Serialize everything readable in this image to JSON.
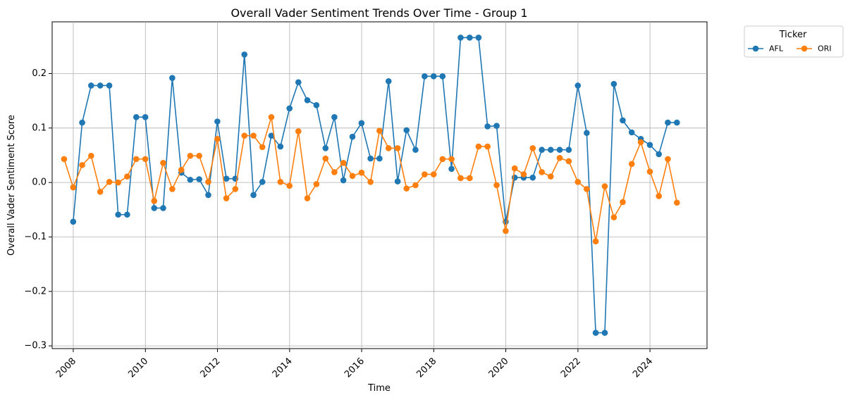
{
  "chart_data": {
    "type": "line",
    "title": "Overall Vader Sentiment Trends Over Time - Group 1",
    "xlabel": "Time",
    "ylabel": "Overall Vader Sentiment Score",
    "xlim": [
      "2007-06-01",
      "2025-08-01"
    ],
    "ylim": [
      -0.305,
      0.295
    ],
    "x_ticks": [
      "2008",
      "2010",
      "2012",
      "2014",
      "2016",
      "2018",
      "2020",
      "2022",
      "2024"
    ],
    "y_ticks": [
      "−0.3",
      "−0.2",
      "−0.1",
      "0.0",
      "0.1",
      "0.2"
    ],
    "grid": true,
    "legend": {
      "title": "Ticker",
      "placement": "outside-top-right",
      "columns": 2
    },
    "series": [
      {
        "name": "AFL",
        "color": "#1f77b4",
        "marker": "circle",
        "points": [
          [
            "2007-12-31",
            -0.072
          ],
          [
            "2008-03-31",
            0.11
          ],
          [
            "2008-06-30",
            0.178
          ],
          [
            "2008-09-30",
            0.178
          ],
          [
            "2008-12-31",
            0.178
          ],
          [
            "2009-03-31",
            -0.059
          ],
          [
            "2009-06-30",
            -0.059
          ],
          [
            "2009-09-30",
            0.12
          ],
          [
            "2009-12-31",
            0.12
          ],
          [
            "2010-03-31",
            -0.047
          ],
          [
            "2010-06-30",
            -0.047
          ],
          [
            "2010-09-30",
            0.192
          ],
          [
            "2010-12-31",
            0.018
          ],
          [
            "2011-03-31",
            0.005
          ],
          [
            "2011-06-30",
            0.006
          ],
          [
            "2011-09-30",
            -0.023
          ],
          [
            "2011-12-31",
            0.112
          ],
          [
            "2012-03-31",
            0.007
          ],
          [
            "2012-06-30",
            0.007
          ],
          [
            "2012-09-30",
            0.235
          ],
          [
            "2012-12-31",
            -0.023
          ],
          [
            "2013-03-31",
            0.001
          ],
          [
            "2013-06-30",
            0.086
          ],
          [
            "2013-09-30",
            0.066
          ],
          [
            "2013-12-31",
            0.136
          ],
          [
            "2014-03-31",
            0.184
          ],
          [
            "2014-06-30",
            0.151
          ],
          [
            "2014-09-30",
            0.142
          ],
          [
            "2014-12-31",
            0.063
          ],
          [
            "2015-03-31",
            0.12
          ],
          [
            "2015-06-30",
            0.004
          ],
          [
            "2015-09-30",
            0.084
          ],
          [
            "2015-12-31",
            0.109
          ],
          [
            "2016-03-31",
            0.044
          ],
          [
            "2016-06-30",
            0.044
          ],
          [
            "2016-09-30",
            0.186
          ],
          [
            "2016-12-31",
            0.002
          ],
          [
            "2017-03-31",
            0.096
          ],
          [
            "2017-06-30",
            0.06
          ],
          [
            "2017-09-30",
            0.195
          ],
          [
            "2017-12-31",
            0.195
          ],
          [
            "2018-03-31",
            0.195
          ],
          [
            "2018-06-30",
            0.025
          ],
          [
            "2018-09-30",
            0.266
          ],
          [
            "2018-12-31",
            0.266
          ],
          [
            "2019-03-31",
            0.266
          ],
          [
            "2019-06-30",
            0.103
          ],
          [
            "2019-09-30",
            0.104
          ],
          [
            "2019-12-31",
            -0.072
          ],
          [
            "2020-03-31",
            0.009
          ],
          [
            "2020-06-30",
            0.009
          ],
          [
            "2020-09-30",
            0.009
          ],
          [
            "2020-12-31",
            0.06
          ],
          [
            "2021-03-31",
            0.06
          ],
          [
            "2021-06-30",
            0.06
          ],
          [
            "2021-09-30",
            0.06
          ],
          [
            "2021-12-31",
            0.178
          ],
          [
            "2022-03-31",
            0.091
          ],
          [
            "2022-06-30",
            -0.276
          ],
          [
            "2022-09-30",
            -0.276
          ],
          [
            "2022-12-31",
            0.181
          ],
          [
            "2023-03-31",
            0.114
          ],
          [
            "2023-06-30",
            0.092
          ],
          [
            "2023-09-30",
            0.08
          ],
          [
            "2023-12-31",
            0.069
          ],
          [
            "2024-03-31",
            0.052
          ],
          [
            "2024-06-30",
            0.11
          ],
          [
            "2024-09-30",
            0.11
          ]
        ]
      },
      {
        "name": "ORI",
        "color": "#ff7f0e",
        "marker": "circle",
        "points": [
          [
            "2007-09-30",
            0.043
          ],
          [
            "2007-12-31",
            -0.009
          ],
          [
            "2008-03-31",
            0.032
          ],
          [
            "2008-06-30",
            0.049
          ],
          [
            "2008-09-30",
            -0.017
          ],
          [
            "2008-12-31",
            0.001
          ],
          [
            "2009-03-31",
            0.0
          ],
          [
            "2009-06-30",
            0.011
          ],
          [
            "2009-09-30",
            0.043
          ],
          [
            "2009-12-31",
            0.043
          ],
          [
            "2010-03-31",
            -0.034
          ],
          [
            "2010-06-30",
            0.036
          ],
          [
            "2010-09-30",
            -0.012
          ],
          [
            "2010-12-31",
            0.023
          ],
          [
            "2011-03-31",
            0.049
          ],
          [
            "2011-06-30",
            0.049
          ],
          [
            "2011-09-30",
            0.001
          ],
          [
            "2011-12-31",
            0.08
          ],
          [
            "2012-03-31",
            -0.029
          ],
          [
            "2012-06-30",
            -0.012
          ],
          [
            "2012-09-30",
            0.086
          ],
          [
            "2012-12-31",
            0.086
          ],
          [
            "2013-03-31",
            0.065
          ],
          [
            "2013-06-30",
            0.12
          ],
          [
            "2013-09-30",
            0.001
          ],
          [
            "2013-12-31",
            -0.006
          ],
          [
            "2014-03-31",
            0.094
          ],
          [
            "2014-06-30",
            -0.029
          ],
          [
            "2014-09-30",
            -0.003
          ],
          [
            "2014-12-31",
            0.044
          ],
          [
            "2015-03-31",
            0.019
          ],
          [
            "2015-06-30",
            0.036
          ],
          [
            "2015-09-30",
            0.012
          ],
          [
            "2015-12-31",
            0.018
          ],
          [
            "2016-03-31",
            0.001
          ],
          [
            "2016-06-30",
            0.095
          ],
          [
            "2016-09-30",
            0.063
          ],
          [
            "2016-12-31",
            0.063
          ],
          [
            "2017-03-31",
            -0.011
          ],
          [
            "2017-06-30",
            -0.005
          ],
          [
            "2017-09-30",
            0.015
          ],
          [
            "2017-12-31",
            0.015
          ],
          [
            "2018-03-31",
            0.043
          ],
          [
            "2018-06-30",
            0.043
          ],
          [
            "2018-09-30",
            0.008
          ],
          [
            "2018-12-31",
            0.008
          ],
          [
            "2019-03-31",
            0.066
          ],
          [
            "2019-06-30",
            0.066
          ],
          [
            "2019-09-30",
            -0.005
          ],
          [
            "2019-12-31",
            -0.089
          ],
          [
            "2020-03-31",
            0.026
          ],
          [
            "2020-06-30",
            0.015
          ],
          [
            "2020-09-30",
            0.063
          ],
          [
            "2020-12-31",
            0.019
          ],
          [
            "2021-03-31",
            0.011
          ],
          [
            "2021-06-30",
            0.045
          ],
          [
            "2021-09-30",
            0.039
          ],
          [
            "2021-12-31",
            0.001
          ],
          [
            "2022-03-31",
            -0.012
          ],
          [
            "2022-06-30",
            -0.108
          ],
          [
            "2022-09-30",
            -0.007
          ],
          [
            "2022-12-31",
            -0.064
          ],
          [
            "2023-03-31",
            -0.036
          ],
          [
            "2023-06-30",
            0.034
          ],
          [
            "2023-09-30",
            0.074
          ],
          [
            "2023-12-31",
            0.02
          ],
          [
            "2024-03-31",
            -0.025
          ],
          [
            "2024-06-30",
            0.043
          ],
          [
            "2024-09-30",
            -0.037
          ]
        ]
      }
    ]
  }
}
